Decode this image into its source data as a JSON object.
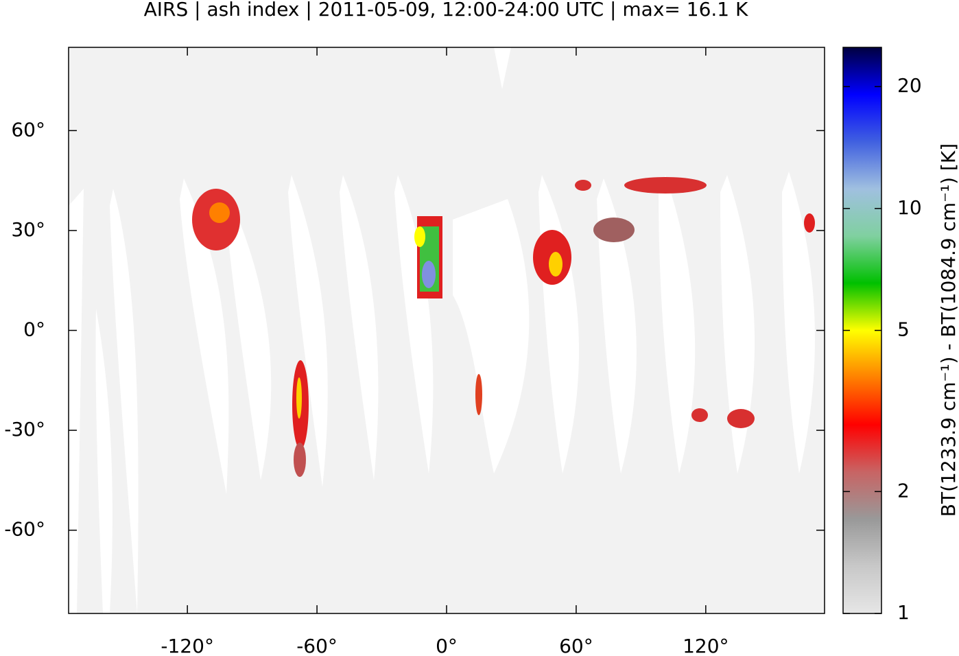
{
  "chart_data": {
    "type": "map",
    "title": "AIRS | ash index | 2011-05-09, 12:00-24:00 UTC | max= 16.1 K",
    "xlim": [
      -175,
      175
    ],
    "ylim": [
      -85,
      85
    ],
    "xticks": [
      {
        "value": -120,
        "label": "-120°"
      },
      {
        "value": -60,
        "label": "-60°"
      },
      {
        "value": 0,
        "label": "0°"
      },
      {
        "value": 60,
        "label": "60°"
      },
      {
        "value": 120,
        "label": "120°"
      }
    ],
    "yticks": [
      {
        "value": 60,
        "label": "60°"
      },
      {
        "value": 30,
        "label": "30°"
      },
      {
        "value": 0,
        "label": "0°"
      },
      {
        "value": -30,
        "label": "-30°"
      },
      {
        "value": -60,
        "label": "-60°"
      }
    ],
    "colorbar": {
      "label": "BT(1233.9 cm⁻¹) - BT(1084.9 cm⁻¹) [K]",
      "lim": [
        1,
        25
      ],
      "log_scale": true,
      "ticks": [
        1,
        2,
        5,
        10,
        20
      ],
      "colormap": [
        "#e6e6e6",
        "#c8c8c8",
        "#999999",
        "#c86464",
        "#ff0000",
        "#ff8000",
        "#ffff00",
        "#00c000",
        "#80d0a0",
        "#a0c0e0",
        "#4060e0",
        "#0000ff",
        "#000040"
      ]
    }
  }
}
